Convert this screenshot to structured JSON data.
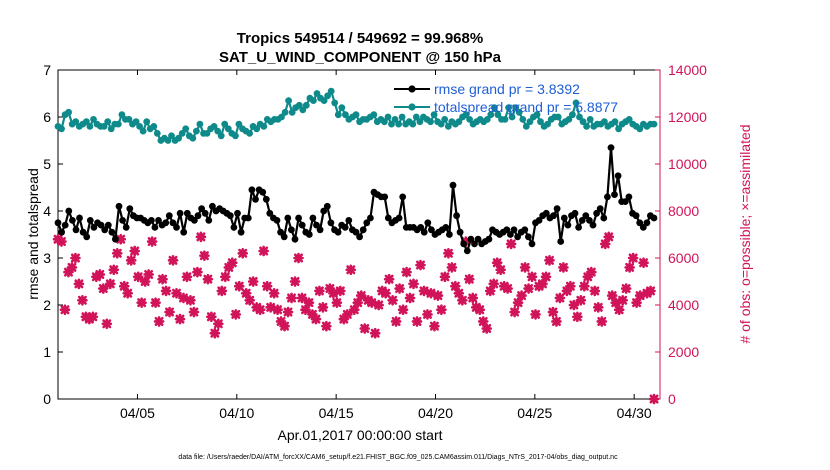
{
  "chart_data": {
    "type": "line",
    "title_line1": "Tropics 549514 / 549692 = 99.968%",
    "title_line2": "SAT_U_WIND_COMPONENT @ 150 hPa",
    "xlabel": "Apr.01,2017 00:00:00 start",
    "ylabel_left": "rmse and totalspread",
    "ylabel_right": "# of obs: o=possible; ×=assimilated",
    "footer": "data file: /Users/raeder/DAI/ATM_forcXX/CAM6_setup/f.e21.FHIST_BGC.f09_025.CAM6assim.011/Diags_NTrS_2017-04/obs_diag_output.nc",
    "xlim": [
      1,
      31.3
    ],
    "ylim_left": [
      0,
      7
    ],
    "ylim_right": [
      0,
      14000
    ],
    "x_ticks": [
      {
        "value": 5,
        "label": "04/05"
      },
      {
        "value": 10,
        "label": "04/10"
      },
      {
        "value": 15,
        "label": "04/15"
      },
      {
        "value": 20,
        "label": "04/20"
      },
      {
        "value": 25,
        "label": "04/25"
      },
      {
        "value": 30,
        "label": "04/30"
      }
    ],
    "y_ticks_left": [
      "0",
      "1",
      "2",
      "3",
      "4",
      "5",
      "6",
      "7"
    ],
    "y_ticks_right": [
      "0",
      "2000",
      "4000",
      "6000",
      "8000",
      "10000",
      "12000",
      "14000"
    ],
    "colors": {
      "rmse": "#000000",
      "spread": "#0f8a8a",
      "obs": "#d1145a",
      "legend_text": "#1f5fd6",
      "right_axis": "#d1145a"
    },
    "legend": [
      {
        "name": "rmse",
        "label": "rmse grand pr = 3.8392"
      },
      {
        "name": "spread",
        "label": "totalspread grand pr = 5.8877"
      }
    ],
    "series": [
      {
        "name": "rmse",
        "axis": "left",
        "marker": "circle",
        "values": [
          3.75,
          3.55,
          3.7,
          4.0,
          3.8,
          3.6,
          3.85,
          3.55,
          3.45,
          3.8,
          3.65,
          3.75,
          3.7,
          3.6,
          3.7,
          3.55,
          3.4,
          4.1,
          3.8,
          3.65,
          4.05,
          3.9,
          3.85,
          3.85,
          3.8,
          3.75,
          3.8,
          3.65,
          3.8,
          3.7,
          3.75,
          3.9,
          3.75,
          3.65,
          3.95,
          3.55,
          3.95,
          3.85,
          3.8,
          3.9,
          4.05,
          3.95,
          3.8,
          4.1,
          4.0,
          4.05,
          4.0,
          3.95,
          3.9,
          3.65,
          3.95,
          3.55,
          3.85,
          3.85,
          4.45,
          4.25,
          4.45,
          4.4,
          4.25,
          3.95,
          3.85,
          3.8,
          3.55,
          3.45,
          3.85,
          3.6,
          3.4,
          3.85,
          3.7,
          3.55,
          3.5,
          3.85,
          3.7,
          3.6,
          4.0,
          4.1,
          3.75,
          3.6,
          3.55,
          3.7,
          3.65,
          3.8,
          3.6,
          3.55,
          3.45,
          3.6,
          3.75,
          3.85,
          4.4,
          4.35,
          4.3,
          4.3,
          3.85,
          3.75,
          3.8,
          3.85,
          4.3,
          3.65,
          3.65,
          3.65,
          3.6,
          3.65,
          3.55,
          3.75,
          3.6,
          3.5,
          3.55,
          3.6,
          3.65,
          3.5,
          4.55,
          3.9,
          3.55,
          3.3,
          3.15,
          3.4,
          3.3,
          3.4,
          3.3,
          3.35,
          3.4,
          3.6,
          3.55,
          3.5,
          3.55,
          3.6,
          3.5,
          3.6,
          3.45,
          3.55,
          3.6,
          3.45,
          3.3,
          3.75,
          3.8,
          3.9,
          3.95,
          3.85,
          3.9,
          4.05,
          3.35,
          3.85,
          3.7,
          3.9,
          3.95,
          3.65,
          3.8,
          3.9,
          3.8,
          3.7,
          3.95,
          4.05,
          3.85,
          4.3,
          5.35,
          4.35,
          4.75,
          4.2,
          4.2,
          4.3,
          3.95,
          3.9,
          3.75,
          3.65,
          3.75,
          3.9,
          3.85
        ]
      },
      {
        "name": "totalspread",
        "axis": "left",
        "marker": "circle",
        "values": [
          5.8,
          5.75,
          6.05,
          6.1,
          5.85,
          5.9,
          5.8,
          5.85,
          5.9,
          5.8,
          5.95,
          5.85,
          5.8,
          5.8,
          5.9,
          5.75,
          5.85,
          5.85,
          6.05,
          5.95,
          5.95,
          5.85,
          5.9,
          5.8,
          5.7,
          5.9,
          5.75,
          5.8,
          5.65,
          5.5,
          5.55,
          5.5,
          5.6,
          5.5,
          5.55,
          5.65,
          5.75,
          5.6,
          5.55,
          5.7,
          5.85,
          5.65,
          5.65,
          5.75,
          5.8,
          5.7,
          5.6,
          5.85,
          5.75,
          5.65,
          5.6,
          5.85,
          5.75,
          5.7,
          5.65,
          5.8,
          5.75,
          5.85,
          5.8,
          5.95,
          5.9,
          5.95,
          5.95,
          6.0,
          6.1,
          6.35,
          6.1,
          6.2,
          6.25,
          6.15,
          6.25,
          6.4,
          6.35,
          6.5,
          6.4,
          6.35,
          6.45,
          6.55,
          6.3,
          6.05,
          6.2,
          6.05,
          5.95,
          6.0,
          6.05,
          5.9,
          5.95,
          5.95,
          6.0,
          6.05,
          5.9,
          5.95,
          5.9,
          6.0,
          5.85,
          5.95,
          5.85,
          6.0,
          5.85,
          5.9,
          5.85,
          6.0,
          5.9,
          6.0,
          5.95,
          5.9,
          6.05,
          5.9,
          5.85,
          5.95,
          5.8,
          5.9,
          5.85,
          5.9,
          6.0,
          6.05,
          5.95,
          5.85,
          5.9,
          5.95,
          5.9,
          5.95,
          6.05,
          6.2,
          6.05,
          5.95,
          5.95,
          6.2,
          6.0,
          6.2,
          6.1,
          5.95,
          5.8,
          5.9,
          6.0,
          6.05,
          5.9,
          5.8,
          5.85,
          5.95,
          6.0,
          6.0,
          5.85,
          5.9,
          5.95,
          6.05,
          6.3,
          6.0,
          5.9,
          5.8,
          5.95,
          5.8,
          5.85,
          5.85,
          5.9,
          5.8,
          5.85,
          5.9,
          5.75,
          5.85,
          5.9,
          5.95,
          5.85,
          5.8,
          5.75,
          5.85,
          5.8,
          5.85,
          5.85
        ]
      },
      {
        "name": "obs_assimilated",
        "axis": "right",
        "marker": "x",
        "values": [
          6800,
          6700,
          3800,
          5400,
          5600,
          6000,
          4900,
          4200,
          3500,
          3400,
          3500,
          5200,
          5300,
          4700,
          3200,
          4900,
          5500,
          6200,
          6800,
          4800,
          4500,
          5900,
          6300,
          5200,
          4100,
          5000,
          5300,
          6700,
          4100,
          3300,
          5100,
          4600,
          3700,
          5900,
          4500,
          3400,
          4300,
          5200,
          4200,
          3700,
          5400,
          6900,
          6100,
          5100,
          3500,
          2800,
          3200,
          4600,
          5200,
          5600,
          5800,
          3600,
          4800,
          6200,
          4500,
          4200,
          5000,
          3900,
          3800,
          6300,
          4800,
          3900,
          4500,
          3800,
          3300,
          3100,
          3700,
          4300,
          5000,
          6000,
          4300,
          3800,
          4100,
          3600,
          3400,
          4600,
          3900,
          3100,
          4700,
          4500,
          4100,
          4600,
          3400,
          3600,
          5500,
          3800,
          4100,
          4400,
          3000,
          4200,
          4100,
          2800,
          4000,
          4600,
          4500,
          5100,
          4200,
          3300,
          4700,
          3800,
          5400,
          4300,
          4900,
          3300,
          5700,
          4600,
          3600,
          4500,
          3100,
          4400,
          3800,
          5200,
          6200,
          5600,
          4800,
          4500,
          4200,
          6700,
          5100,
          4300,
          3900,
          3800,
          3300,
          3000,
          4600,
          4900,
          5800,
          5500,
          4800,
          4700,
          6600,
          3700,
          4100,
          4400,
          5600,
          4700,
          5200,
          3600,
          4800,
          4900,
          5200,
          5900,
          3700,
          3300,
          4300,
          5600,
          4600,
          4800,
          4000,
          3500,
          4200,
          4800,
          5200,
          5400,
          4600,
          3900,
          3300,
          6600,
          6900,
          4400,
          4100,
          3800,
          4200,
          4700,
          5600,
          6000,
          4100,
          4400,
          5800,
          4500,
          4600,
          0
        ]
      }
    ]
  }
}
